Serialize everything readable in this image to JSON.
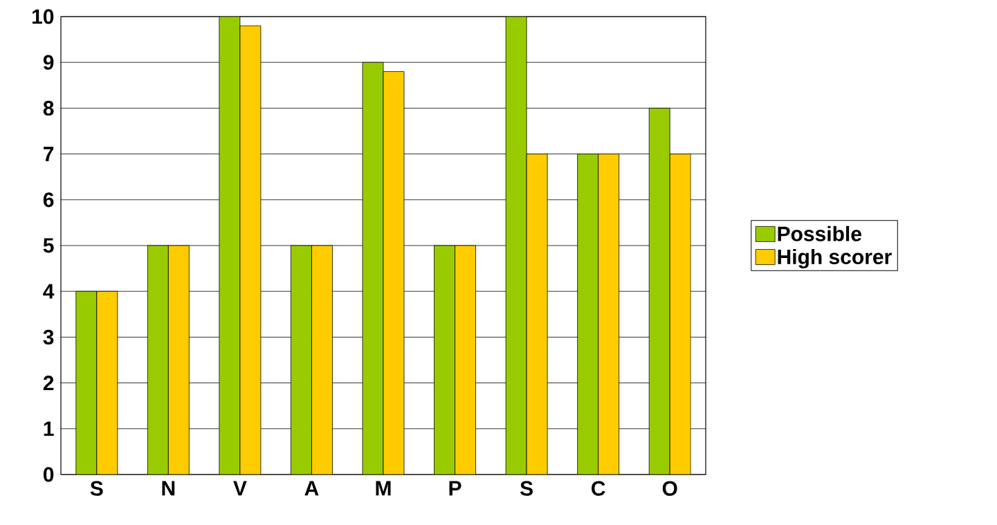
{
  "chart_data": {
    "type": "bar",
    "categories": [
      "S",
      "N",
      "V",
      "A",
      "M",
      "P",
      "S",
      "C",
      "O"
    ],
    "series": [
      {
        "name": "Possible",
        "color": "#99cc00",
        "values": [
          4,
          5,
          10,
          5,
          9,
          5,
          10,
          7,
          8
        ]
      },
      {
        "name": "High scorer",
        "color": "#ffcc00",
        "values": [
          4,
          5,
          9.8,
          5,
          8.8,
          5,
          7,
          7,
          7
        ]
      }
    ],
    "ylim": [
      0,
      10
    ],
    "yticks": [
      0,
      1,
      2,
      3,
      4,
      5,
      6,
      7,
      8,
      9,
      10
    ],
    "grid": "y",
    "legend": "right"
  }
}
